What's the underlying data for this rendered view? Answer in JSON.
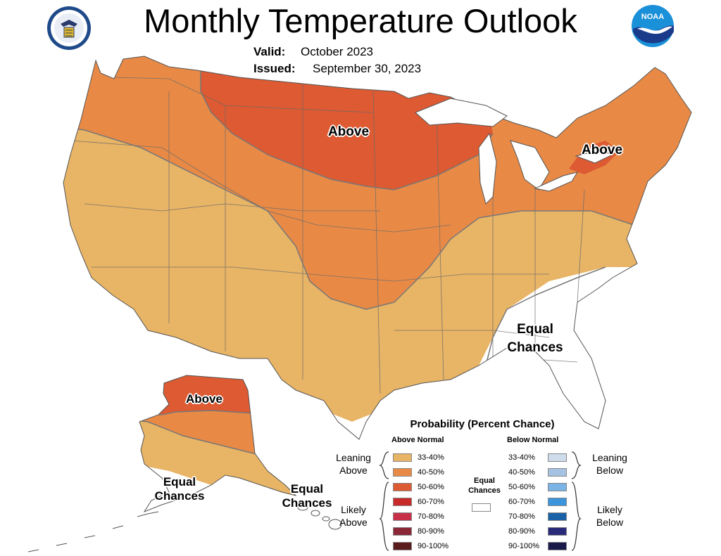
{
  "header": {
    "title": "Monthly Temperature Outlook",
    "valid_label": "Valid:",
    "valid_value": "October 2023",
    "issued_label": "Issued:",
    "issued_value": "September 30, 2023"
  },
  "map_labels": {
    "conus_above_north": "Above",
    "conus_above_northeast": "Above",
    "conus_equal_line1": "Equal",
    "conus_equal_line2": "Chances",
    "alaska_above": "Above",
    "alaska_equal_line1": "Equal",
    "alaska_equal_line2": "Chances",
    "hawaii_equal_line1": "Equal",
    "hawaii_equal_line2": "Chances"
  },
  "legend": {
    "title": "Probability (Percent Chance)",
    "above_header": "Above Normal",
    "below_header": "Below Normal",
    "equal_line1": "Equal",
    "equal_line2": "Chances",
    "leaning_above_1": "Leaning",
    "leaning_above_2": "Above",
    "likely_above_1": "Likely",
    "likely_above_2": "Above",
    "leaning_below_1": "Leaning",
    "leaning_below_2": "Below",
    "likely_below_1": "Likely",
    "likely_below_2": "Below",
    "above": [
      {
        "label": "33-40%",
        "color": "#e8b466"
      },
      {
        "label": "40-50%",
        "color": "#e88a46"
      },
      {
        "label": "50-60%",
        "color": "#dd5a32"
      },
      {
        "label": "60-70%",
        "color": "#c82a2a"
      },
      {
        "label": "70-80%",
        "color": "#c8304a"
      },
      {
        "label": "80-90%",
        "color": "#8a2838"
      },
      {
        "label": "90-100%",
        "color": "#5a1c1c"
      }
    ],
    "below": [
      {
        "label": "33-40%",
        "color": "#cfdcec"
      },
      {
        "label": "40-50%",
        "color": "#a6c2e2"
      },
      {
        "label": "50-60%",
        "color": "#7ab4e6"
      },
      {
        "label": "60-70%",
        "color": "#3c94da"
      },
      {
        "label": "70-80%",
        "color": "#1a62a8"
      },
      {
        "label": "80-90%",
        "color": "#2a2a7a"
      },
      {
        "label": "90-100%",
        "color": "#1a1a4a"
      }
    ],
    "equal_color": "#ffffff"
  },
  "logos": {
    "left": "commerce-seal-icon",
    "right": "noaa-logo-icon"
  }
}
